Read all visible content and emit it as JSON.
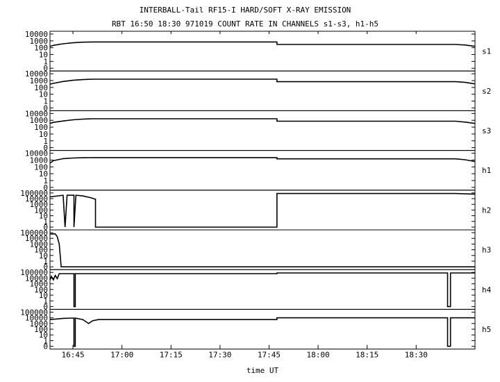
{
  "title_line1": "INTERBALL-Tail RF15-I HARD/SOFT X-RAY EMISSION",
  "title_line2": "RBT 16:50 18:30 971019  COUNT RATE IN CHANNELS s1-s3, h1-h5",
  "xlabel": "time UT",
  "colors": {
    "line": "#000000",
    "background": "#ffffff"
  },
  "chart_data": {
    "type": "line",
    "xlim_minutes": [
      16.633,
      18.8
    ],
    "x_unit": "hours UT",
    "x_ticks": [
      {
        "t": 16.75,
        "label": "16:45"
      },
      {
        "t": 17.0,
        "label": "17:00"
      },
      {
        "t": 17.25,
        "label": "17:15"
      },
      {
        "t": 17.5,
        "label": "17:30"
      },
      {
        "t": 17.75,
        "label": "17:45"
      },
      {
        "t": 18.0,
        "label": "18:00"
      },
      {
        "t": 18.25,
        "label": "18:15"
      },
      {
        "t": 18.5,
        "label": "18:30"
      }
    ],
    "yscale": "log",
    "grid": false,
    "panels": [
      {
        "name": "s1",
        "ylim": [
          0.1,
          10000
        ],
        "y_tick_labels": [
          "10000",
          "1000",
          "100",
          "10",
          "1",
          "0"
        ],
        "points": [
          [
            16.633,
            150
          ],
          [
            16.65,
            220
          ],
          [
            16.7,
            380
          ],
          [
            16.75,
            520
          ],
          [
            16.8,
            650
          ],
          [
            16.85,
            700
          ],
          [
            16.9,
            700
          ],
          [
            17.79,
            700
          ],
          [
            17.79,
            300
          ],
          [
            18.7,
            300
          ],
          [
            18.75,
            250
          ],
          [
            18.8,
            160
          ]
        ]
      },
      {
        "name": "s2",
        "ylim": [
          0.1,
          10000
        ],
        "y_tick_labels": [
          "10000",
          "1000",
          "100",
          "10",
          "1",
          "0"
        ],
        "points": [
          [
            16.633,
            300
          ],
          [
            16.65,
            400
          ],
          [
            16.7,
            750
          ],
          [
            16.75,
            1100
          ],
          [
            16.8,
            1400
          ],
          [
            16.85,
            1600
          ],
          [
            16.9,
            1600
          ],
          [
            17.79,
            1600
          ],
          [
            17.79,
            700
          ],
          [
            18.7,
            700
          ],
          [
            18.75,
            550
          ],
          [
            18.8,
            330
          ]
        ]
      },
      {
        "name": "s3",
        "ylim": [
          0.1,
          10000
        ],
        "y_tick_labels": [
          "10000",
          "1000",
          "100",
          "10",
          "1",
          "0"
        ],
        "points": [
          [
            16.633,
            350
          ],
          [
            16.65,
            500
          ],
          [
            16.7,
            800
          ],
          [
            16.75,
            1200
          ],
          [
            16.8,
            1500
          ],
          [
            16.85,
            1700
          ],
          [
            16.9,
            1700
          ],
          [
            17.79,
            1700
          ],
          [
            17.79,
            750
          ],
          [
            18.7,
            750
          ],
          [
            18.75,
            550
          ],
          [
            18.8,
            350
          ]
        ]
      },
      {
        "name": "h1",
        "ylim": [
          0.1,
          10000
        ],
        "y_tick_labels": [
          "10000",
          "1000",
          "100",
          "10",
          "1",
          "0"
        ],
        "points": [
          [
            16.633,
            350
          ],
          [
            16.65,
            800
          ],
          [
            16.7,
            1600
          ],
          [
            16.75,
            2000
          ],
          [
            16.8,
            2200
          ],
          [
            16.85,
            2300
          ],
          [
            16.9,
            2300
          ],
          [
            17.79,
            2300
          ],
          [
            17.79,
            1500
          ],
          [
            18.7,
            1500
          ],
          [
            18.75,
            1100
          ],
          [
            18.8,
            600
          ]
        ]
      },
      {
        "name": "h2",
        "ylim": [
          0.1,
          100000
        ],
        "y_tick_labels": [
          "100000",
          "10000",
          "1000",
          "100",
          "10",
          "1",
          "0"
        ],
        "points": [
          [
            16.633,
            20000
          ],
          [
            16.7,
            40000
          ],
          [
            16.71,
            0.1
          ],
          [
            16.72,
            40000
          ],
          [
            16.755,
            40000
          ],
          [
            16.755,
            0.1
          ],
          [
            16.765,
            40000
          ],
          [
            16.8,
            30000
          ],
          [
            16.84,
            15000
          ],
          [
            16.865,
            8000
          ],
          [
            16.865,
            0.1
          ],
          [
            17.79,
            0.1
          ],
          [
            17.79,
            80000
          ],
          [
            18.7,
            80000
          ],
          [
            18.8,
            60000
          ]
        ]
      },
      {
        "name": "h3",
        "ylim": [
          0.1,
          100000
        ],
        "y_tick_labels": [
          "100000",
          "10000",
          "1000",
          "100",
          "10",
          "1",
          "0"
        ],
        "points": [
          [
            16.633,
            60000
          ],
          [
            16.66,
            60000
          ],
          [
            16.67,
            20000
          ],
          [
            16.68,
            1000
          ],
          [
            16.685,
            10
          ],
          [
            16.69,
            0.1
          ],
          [
            18.8,
            0.1
          ]
        ]
      },
      {
        "name": "h4",
        "ylim": [
          0.1,
          100000
        ],
        "y_tick_labels": [
          "100000",
          "10000",
          "1000",
          "100",
          "10",
          "1",
          "0"
        ],
        "points": [
          [
            16.633,
            5000
          ],
          [
            16.64,
            20000
          ],
          [
            16.65,
            5000
          ],
          [
            16.66,
            30000
          ],
          [
            16.67,
            8000
          ],
          [
            16.68,
            60000
          ],
          [
            16.755,
            60000
          ],
          [
            16.755,
            0.1
          ],
          [
            16.762,
            0.1
          ],
          [
            16.762,
            60000
          ],
          [
            17.79,
            60000
          ],
          [
            17.79,
            80000
          ],
          [
            18.6,
            80000
          ],
          [
            18.66,
            80000
          ],
          [
            18.66,
            0.1
          ],
          [
            18.675,
            0.1
          ],
          [
            18.675,
            80000
          ],
          [
            18.8,
            80000
          ]
        ]
      },
      {
        "name": "h5",
        "ylim": [
          0.1,
          100000
        ],
        "y_tick_labels": [
          "100000",
          "10000",
          "1000",
          "100",
          "10",
          "1",
          "0"
        ],
        "points": [
          [
            16.633,
            5000
          ],
          [
            16.66,
            6000
          ],
          [
            16.7,
            8000
          ],
          [
            16.74,
            9000
          ],
          [
            16.755,
            9000
          ],
          [
            16.755,
            0.1
          ],
          [
            16.762,
            0.1
          ],
          [
            16.762,
            9000
          ],
          [
            16.8,
            5000
          ],
          [
            16.83,
            1000
          ],
          [
            16.85,
            3000
          ],
          [
            16.88,
            5000
          ],
          [
            17.79,
            5000
          ],
          [
            17.79,
            10000
          ],
          [
            18.66,
            10000
          ],
          [
            18.66,
            0.1
          ],
          [
            18.675,
            0.1
          ],
          [
            18.675,
            10000
          ],
          [
            18.8,
            10000
          ]
        ]
      }
    ]
  }
}
